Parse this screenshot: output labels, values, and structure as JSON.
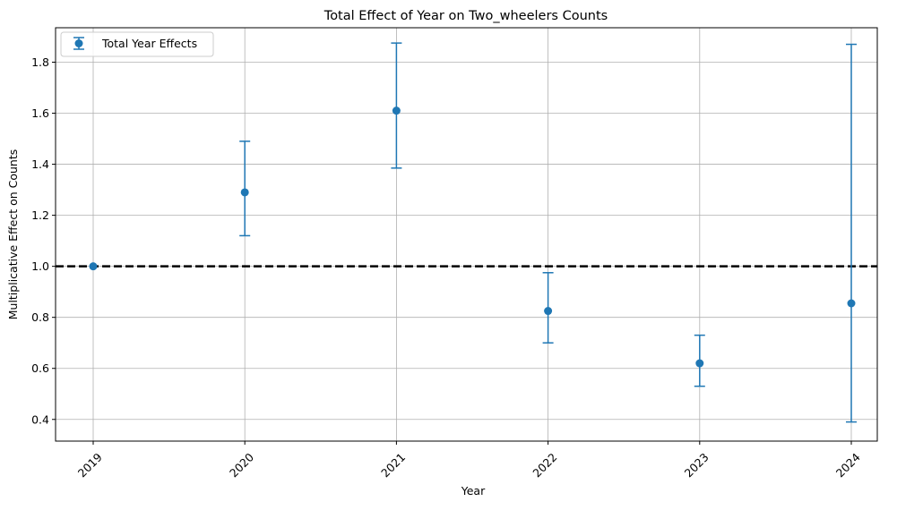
{
  "chart_data": {
    "type": "scatter",
    "title": "Total Effect of Year on Two_wheelers Counts",
    "xlabel": "Year",
    "ylabel": "Multiplicative Effect on Counts",
    "categories": [
      "2019",
      "2020",
      "2021",
      "2022",
      "2023",
      "2024"
    ],
    "series": [
      {
        "name": "Total Year Effects",
        "color": "#1f77b4",
        "values": [
          1.0,
          1.29,
          1.61,
          0.825,
          0.62,
          0.855
        ],
        "lower": [
          1.0,
          1.12,
          1.385,
          0.7,
          0.53,
          0.39
        ],
        "upper": [
          1.0,
          1.49,
          1.875,
          0.975,
          0.73,
          1.87
        ]
      }
    ],
    "reference_line": {
      "y": 1.0,
      "style": "dashed",
      "color": "#000000"
    },
    "ylim": [
      0.315,
      1.935
    ],
    "yticks": [
      0.4,
      0.6,
      0.8,
      1.0,
      1.2,
      1.4,
      1.6,
      1.8
    ],
    "ytick_labels": [
      "0.4",
      "0.6",
      "0.8",
      "1.0",
      "1.2",
      "1.4",
      "1.6",
      "1.8"
    ],
    "grid": true,
    "legend_position": "top-left",
    "xtick_rotation": 45
  }
}
